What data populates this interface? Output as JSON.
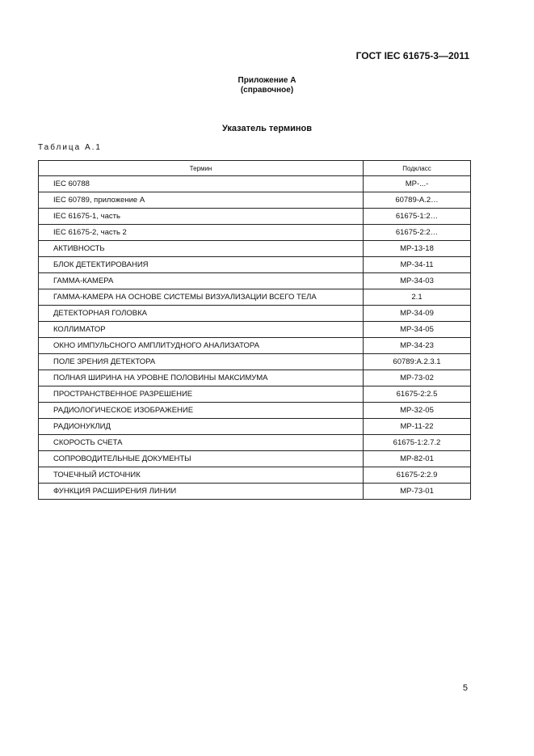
{
  "header": "ГОСТ IEC 61675-3—2011",
  "appendix": {
    "title": "Приложение А",
    "subtitle": "(справочное)"
  },
  "section_title": "Указатель терминов",
  "table_label": "Таблица А.1",
  "table": {
    "columns": [
      "Термин",
      "Подкласс"
    ],
    "rows": [
      [
        "IEC 60788",
        "МР-...-"
      ],
      [
        "IEC 60789, приложение А",
        "60789-А.2…"
      ],
      [
        "IEC 61675-1, часть",
        "61675-1:2…"
      ],
      [
        "IEC 61675-2, часть 2",
        "61675-2:2…"
      ],
      [
        "АКТИВНОСТЬ",
        "МР-13-18"
      ],
      [
        "БЛОК ДЕТЕКТИРОВАНИЯ",
        "МР-34-11"
      ],
      [
        "ГАММА-КАМЕРА",
        "МР-34-03"
      ],
      [
        "ГАММА-КАМЕРА НА ОСНОВЕ СИСТЕМЫ ВИЗУАЛИЗАЦИИ ВСЕГО ТЕЛА",
        "2.1"
      ],
      [
        "ДЕТЕКТОРНАЯ ГОЛОВКА",
        "МР-34-09"
      ],
      [
        "КОЛЛИМАТОР",
        "МР-34-05"
      ],
      [
        "ОКНО ИМПУЛЬСНОГО АМПЛИТУДНОГО АНАЛИЗАТОРА",
        "МР-34-23"
      ],
      [
        "ПОЛЕ ЗРЕНИЯ ДЕТЕКТОРА",
        "60789:А.2.3.1"
      ],
      [
        "ПОЛНАЯ ШИРИНА НА УРОВНЕ ПОЛОВИНЫ МАКСИМУМА",
        "МР-73-02"
      ],
      [
        "ПРОСТРАНСТВЕННОЕ РАЗРЕШЕНИЕ",
        "61675-2:2.5"
      ],
      [
        "РАДИОЛОГИЧЕСКОЕ ИЗОБРАЖЕНИЕ",
        "МР-32-05"
      ],
      [
        "РАДИОНУКЛИД",
        "МР-11-22"
      ],
      [
        "СКОРОСТЬ СЧЕТА",
        "61675-1:2.7.2"
      ],
      [
        "СОПРОВОДИТЕЛЬНЫЕ ДОКУМЕНТЫ",
        "МР-82-01"
      ],
      [
        "ТОЧЕЧНЫЙ ИСТОЧНИК",
        "61675-2:2.9"
      ],
      [
        "ФУНКЦИЯ РАСШИРЕНИЯ ЛИНИИ",
        "МР-73-01"
      ]
    ]
  },
  "page_number": "5"
}
